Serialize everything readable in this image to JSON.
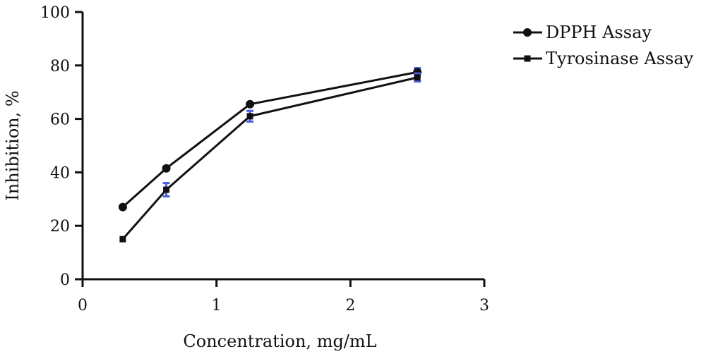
{
  "chart_data": {
    "type": "line",
    "title": "",
    "xlabel": "Concentration, mg/mL",
    "ylabel": "Inhibition, %",
    "xlim": [
      0,
      3
    ],
    "ylim": [
      0,
      100
    ],
    "xticks": [
      "0",
      "1",
      "2",
      "3"
    ],
    "yticks": [
      "0",
      "20",
      "40",
      "60",
      "80",
      "100"
    ],
    "grid": false,
    "legend_position": "top-right",
    "error_bar_color": "#4a5fe0",
    "series": [
      {
        "name": "DPPH Assay",
        "marker": "circle",
        "color": "#111111",
        "x": [
          0.3,
          0.625,
          1.25,
          2.5
        ],
        "y": [
          27,
          41.5,
          65.5,
          77.5
        ],
        "yerr": [
          0,
          0,
          0,
          1.5
        ]
      },
      {
        "name": "Tyrosinase Assay",
        "marker": "square",
        "color": "#111111",
        "x": [
          0.3,
          0.625,
          1.25,
          2.5
        ],
        "y": [
          15,
          33.5,
          61,
          75.5
        ],
        "yerr": [
          0,
          2.5,
          2,
          1.5
        ]
      }
    ]
  }
}
